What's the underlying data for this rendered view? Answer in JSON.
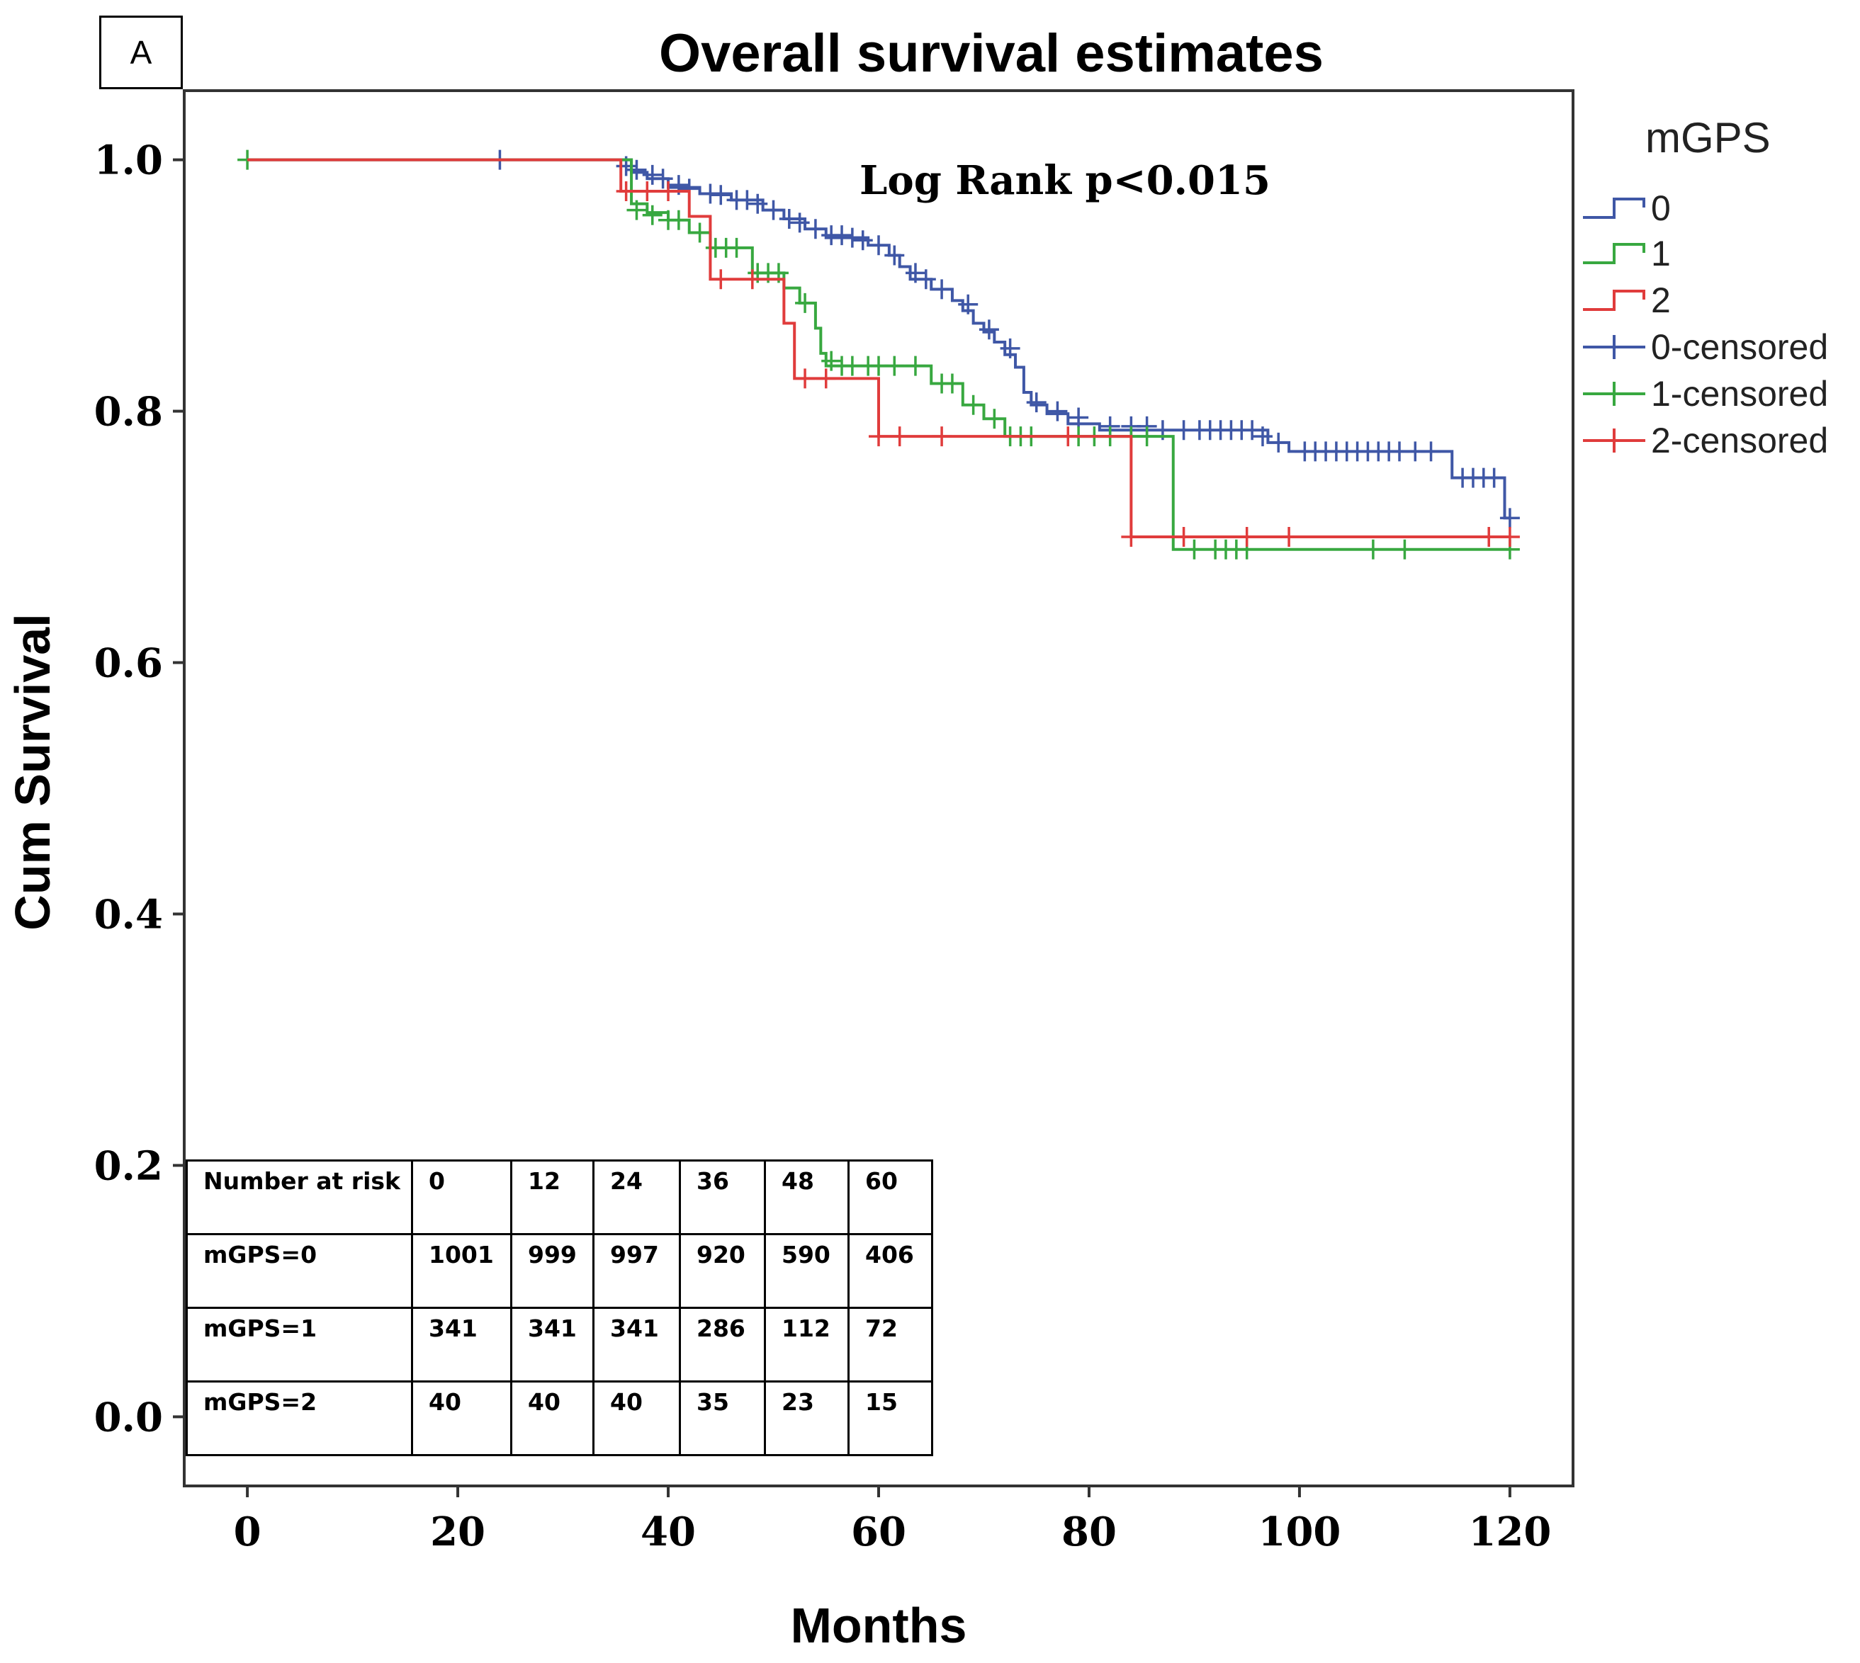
{
  "panel_label": "A",
  "chart_data": {
    "type": "line",
    "title": "Overall survival estimates",
    "xlabel": "Months",
    "ylabel": "Cum Survival",
    "xlim": [
      -6,
      126
    ],
    "ylim": [
      -0.055,
      1.055
    ],
    "xticks": [
      0,
      20,
      40,
      60,
      80,
      100,
      120
    ],
    "yticks": [
      0.0,
      0.2,
      0.4,
      0.6,
      0.8,
      1.0
    ],
    "ytick_labels": [
      "0.0",
      "0.2",
      "0.4",
      "0.6",
      "0.8",
      "1.0"
    ],
    "annotation": "Log Rank p<0.015",
    "legend": {
      "title": "mGPS",
      "position": "right",
      "entries": [
        {
          "label": "0",
          "kind": "step",
          "color": "#3f57a6"
        },
        {
          "label": "1",
          "kind": "step",
          "color": "#38a840"
        },
        {
          "label": "2",
          "kind": "step",
          "color": "#e03c3c"
        },
        {
          "label": "0-censored",
          "kind": "censor",
          "color": "#3f57a6"
        },
        {
          "label": "1-censored",
          "kind": "censor",
          "color": "#38a840"
        },
        {
          "label": "2-censored",
          "kind": "censor",
          "color": "#e03c3c"
        }
      ]
    },
    "series": [
      {
        "name": "0",
        "color": "#3f57a6",
        "steps": [
          [
            0,
            1.0
          ],
          [
            36.5,
            0.99
          ],
          [
            38,
            0.985
          ],
          [
            40,
            0.978
          ],
          [
            43,
            0.973
          ],
          [
            46,
            0.968
          ],
          [
            49,
            0.96
          ],
          [
            51,
            0.953
          ],
          [
            53,
            0.945
          ],
          [
            55,
            0.938
          ],
          [
            59,
            0.932
          ],
          [
            61,
            0.924
          ],
          [
            62,
            0.915
          ],
          [
            63,
            0.905
          ],
          [
            65,
            0.897
          ],
          [
            67,
            0.888
          ],
          [
            68,
            0.88
          ],
          [
            69,
            0.87
          ],
          [
            70,
            0.863
          ],
          [
            71,
            0.855
          ],
          [
            72,
            0.845
          ],
          [
            73,
            0.835
          ],
          [
            73.8,
            0.815
          ],
          [
            74.5,
            0.805
          ],
          [
            76,
            0.798
          ],
          [
            78,
            0.79
          ],
          [
            81,
            0.785
          ],
          [
            97,
            0.775
          ],
          [
            99,
            0.768
          ],
          [
            114.5,
            0.747
          ],
          [
            119.5,
            0.715
          ]
        ],
        "end": 120,
        "censored": [
          [
            24,
            1.0
          ],
          [
            36,
            0.995
          ],
          [
            37,
            0.992
          ],
          [
            38.5,
            0.988
          ],
          [
            39.5,
            0.985
          ],
          [
            41,
            0.98
          ],
          [
            42,
            0.977
          ],
          [
            44,
            0.973
          ],
          [
            45,
            0.972
          ],
          [
            46.5,
            0.968
          ],
          [
            47.5,
            0.968
          ],
          [
            48.5,
            0.965
          ],
          [
            50,
            0.96
          ],
          [
            51.5,
            0.953
          ],
          [
            52.5,
            0.95
          ],
          [
            54,
            0.945
          ],
          [
            55.5,
            0.94
          ],
          [
            56.5,
            0.94
          ],
          [
            57.5,
            0.938
          ],
          [
            58.5,
            0.936
          ],
          [
            60,
            0.932
          ],
          [
            61.5,
            0.924
          ],
          [
            63.5,
            0.91
          ],
          [
            64.5,
            0.905
          ],
          [
            66,
            0.897
          ],
          [
            68.5,
            0.885
          ],
          [
            70.5,
            0.865
          ],
          [
            72.5,
            0.85
          ],
          [
            75,
            0.807
          ],
          [
            77,
            0.8
          ],
          [
            79,
            0.795
          ],
          [
            82,
            0.788
          ],
          [
            84,
            0.788
          ],
          [
            85.5,
            0.788
          ],
          [
            87,
            0.785
          ],
          [
            89,
            0.785
          ],
          [
            90.5,
            0.785
          ],
          [
            91.5,
            0.785
          ],
          [
            92.5,
            0.785
          ],
          [
            93.5,
            0.785
          ],
          [
            94.5,
            0.785
          ],
          [
            95.5,
            0.785
          ],
          [
            96.5,
            0.78
          ],
          [
            98,
            0.775
          ],
          [
            100.5,
            0.768
          ],
          [
            101.5,
            0.768
          ],
          [
            102.5,
            0.768
          ],
          [
            103.5,
            0.768
          ],
          [
            104.5,
            0.768
          ],
          [
            105.5,
            0.768
          ],
          [
            106.5,
            0.768
          ],
          [
            107.5,
            0.768
          ],
          [
            108.5,
            0.768
          ],
          [
            109.5,
            0.768
          ],
          [
            111,
            0.768
          ],
          [
            112.5,
            0.768
          ],
          [
            115.5,
            0.747
          ],
          [
            116.5,
            0.747
          ],
          [
            117.5,
            0.747
          ],
          [
            118.5,
            0.747
          ],
          [
            120,
            0.715
          ]
        ]
      },
      {
        "name": "1",
        "color": "#38a840",
        "steps": [
          [
            0,
            1.0
          ],
          [
            36.5,
            0.965
          ],
          [
            38,
            0.958
          ],
          [
            40,
            0.952
          ],
          [
            42,
            0.942
          ],
          [
            44,
            0.93
          ],
          [
            48,
            0.91
          ],
          [
            51,
            0.898
          ],
          [
            52.5,
            0.886
          ],
          [
            54,
            0.866
          ],
          [
            54.5,
            0.846
          ],
          [
            55,
            0.836
          ],
          [
            65,
            0.822
          ],
          [
            68,
            0.805
          ],
          [
            70,
            0.794
          ],
          [
            72,
            0.78
          ],
          [
            88,
            0.69
          ]
        ],
        "end": 120,
        "censored": [
          [
            0,
            1.0
          ],
          [
            37,
            0.96
          ],
          [
            38.5,
            0.956
          ],
          [
            40,
            0.952
          ],
          [
            41,
            0.952
          ],
          [
            43,
            0.942
          ],
          [
            44.5,
            0.93
          ],
          [
            45.5,
            0.93
          ],
          [
            46.5,
            0.93
          ],
          [
            48.5,
            0.91
          ],
          [
            49.5,
            0.91
          ],
          [
            50.5,
            0.91
          ],
          [
            53,
            0.886
          ],
          [
            55.5,
            0.84
          ],
          [
            56.5,
            0.836
          ],
          [
            57.5,
            0.836
          ],
          [
            59,
            0.836
          ],
          [
            60,
            0.836
          ],
          [
            61.5,
            0.836
          ],
          [
            63.5,
            0.836
          ],
          [
            66,
            0.822
          ],
          [
            67,
            0.822
          ],
          [
            69,
            0.805
          ],
          [
            71,
            0.794
          ],
          [
            72.5,
            0.78
          ],
          [
            73.5,
            0.78
          ],
          [
            74.5,
            0.78
          ],
          [
            79,
            0.78
          ],
          [
            80.5,
            0.78
          ],
          [
            82,
            0.78
          ],
          [
            84,
            0.78
          ],
          [
            85.5,
            0.78
          ],
          [
            90,
            0.69
          ],
          [
            92,
            0.69
          ],
          [
            93,
            0.69
          ],
          [
            94,
            0.69
          ],
          [
            95,
            0.69
          ],
          [
            107,
            0.69
          ],
          [
            110,
            0.69
          ],
          [
            120,
            0.69
          ]
        ]
      },
      {
        "name": "2",
        "color": "#e03c3c",
        "steps": [
          [
            0,
            1.0
          ],
          [
            35.5,
            0.975
          ],
          [
            42,
            0.955
          ],
          [
            44,
            0.905
          ],
          [
            51,
            0.87
          ],
          [
            52,
            0.826
          ],
          [
            60,
            0.78
          ],
          [
            84,
            0.7
          ]
        ],
        "end": 120,
        "censored": [
          [
            36,
            0.975
          ],
          [
            38,
            0.975
          ],
          [
            40,
            0.975
          ],
          [
            45,
            0.905
          ],
          [
            48,
            0.905
          ],
          [
            53,
            0.826
          ],
          [
            55,
            0.826
          ],
          [
            60,
            0.78
          ],
          [
            62,
            0.78
          ],
          [
            66,
            0.78
          ],
          [
            78,
            0.78
          ],
          [
            84,
            0.7
          ],
          [
            89,
            0.7
          ],
          [
            95,
            0.7
          ],
          [
            99,
            0.7
          ],
          [
            118,
            0.7
          ],
          [
            120,
            0.7
          ]
        ]
      }
    ]
  },
  "risk_table": {
    "header": [
      "Number at risk",
      "0",
      "12",
      "24",
      "36",
      "48",
      "60"
    ],
    "rows": [
      [
        "mGPS=0",
        "1001",
        "999",
        "997",
        "920",
        "590",
        "406"
      ],
      [
        "mGPS=1",
        "341",
        "341",
        "341",
        "286",
        "112",
        "72"
      ],
      [
        "mGPS=2",
        "40",
        "40",
        "40",
        "35",
        "23",
        "15"
      ]
    ]
  }
}
